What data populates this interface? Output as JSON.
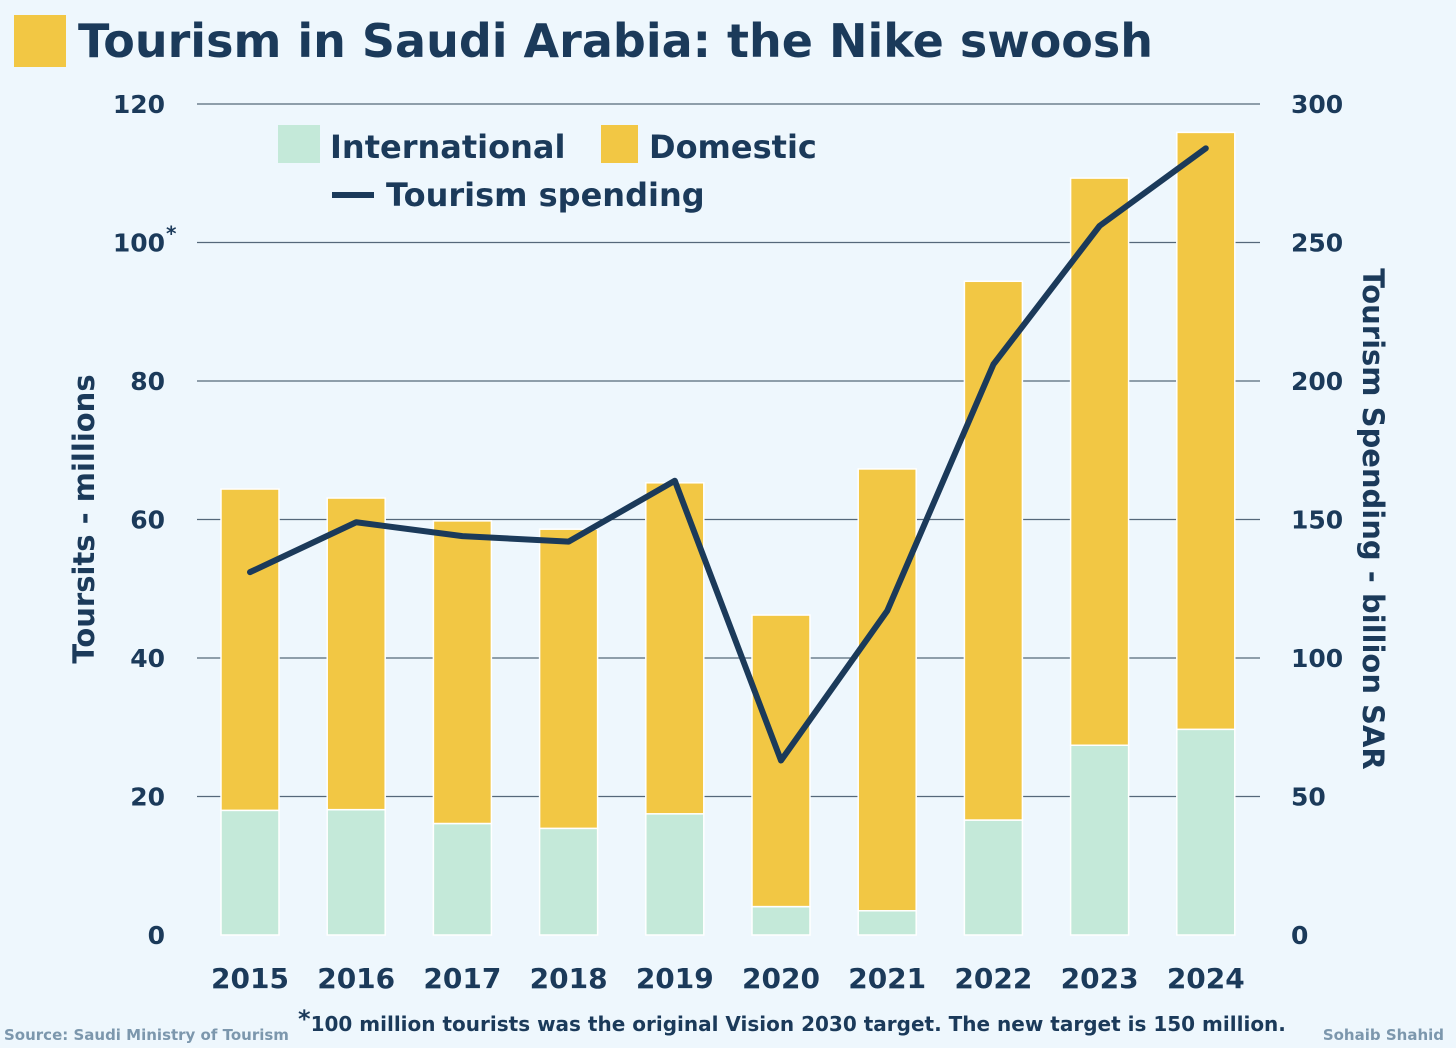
{
  "title": "Tourism in Saudi Arabia: the Nike swoosh",
  "colors": {
    "international": "#c4e9d9",
    "domestic": "#f2c744",
    "line": "#1b3a5a",
    "text": "#1b3a5a",
    "grid": "#55687a"
  },
  "footnote": "100 million tourists was the original Vision 2030 target. The new target is 150 million.",
  "footnote_star": "*",
  "source": "Source: Saudi Ministry of Tourism",
  "credit": "Sohaib Shahid",
  "chart_data": {
    "type": "bar",
    "stacked": true,
    "categories": [
      "2015",
      "2016",
      "2017",
      "2018",
      "2019",
      "2020",
      "2021",
      "2022",
      "2023",
      "2024"
    ],
    "series": [
      {
        "name": "International",
        "axis": "left",
        "values": [
          18.0,
          18.1,
          16.1,
          15.4,
          17.5,
          4.1,
          3.5,
          16.6,
          27.4,
          29.7
        ]
      },
      {
        "name": "Domestic",
        "axis": "left",
        "values": [
          46.4,
          45.0,
          43.7,
          43.2,
          47.8,
          42.1,
          63.8,
          77.8,
          81.9,
          86.2
        ]
      }
    ],
    "line_series": {
      "name": "Tourism spending",
      "axis": "right",
      "values": [
        131,
        149,
        144,
        142,
        164,
        63,
        117,
        206,
        256,
        284
      ]
    },
    "ylim_left": [
      0,
      120
    ],
    "ylim_right": [
      0,
      300
    ],
    "yticks_left": [
      "0",
      "20",
      "40",
      "60",
      "80",
      "100",
      "120"
    ],
    "yticks_right": [
      "0",
      "50",
      "100",
      "150",
      "200",
      "250",
      "300"
    ],
    "ylabel_left": "Toursits - millions",
    "ylabel_right": "Tourism Spending - billion SAR",
    "annotation": "*",
    "legend": [
      {
        "label": "International",
        "type": "box"
      },
      {
        "label": "Domestic",
        "type": "box"
      },
      {
        "label": "Tourism spending",
        "type": "line"
      }
    ],
    "legend_position": "top-left",
    "grid": true
  }
}
